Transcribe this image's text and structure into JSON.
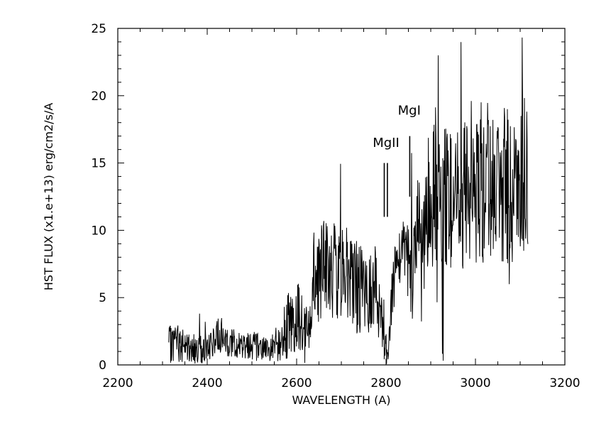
{
  "chart_data": {
    "type": "line",
    "title": "",
    "xlabel": "WAVELENGTH (A)",
    "ylabel": "HST FLUX (x1.e+13) erg/cm2/s/A",
    "xlim": [
      2200,
      3200
    ],
    "ylim": [
      0,
      25
    ],
    "xticks": [
      2200,
      2400,
      2600,
      2800,
      3000,
      3200
    ],
    "yticks": [
      0,
      5,
      10,
      15,
      20,
      25
    ],
    "grid": false,
    "legend": "none",
    "series": [
      {
        "x": [
          2314,
          2330,
          2350,
          2370,
          2390,
          2410,
          2425,
          2440,
          2460,
          2480,
          2500,
          2520,
          2540,
          2560,
          2575,
          2590,
          2600,
          2615,
          2630,
          2635,
          2640,
          2660,
          2680,
          2700,
          2720,
          2740,
          2760,
          2775,
          2785,
          2795,
          2805,
          2815,
          2830,
          2845,
          2856,
          2865,
          2880,
          2895,
          2910,
          2930,
          2950,
          2970,
          2990,
          3010,
          3030,
          3050,
          3070,
          3090,
          3105,
          3118
        ],
        "y": [
          1.4,
          1.8,
          1.3,
          1.2,
          1.2,
          1.3,
          2.3,
          1.8,
          1.6,
          1.5,
          1.6,
          1.2,
          1.3,
          1.6,
          2.6,
          3.3,
          3.8,
          3.0,
          3.0,
          4.5,
          7.0,
          7.2,
          6.8,
          7.2,
          6.3,
          5.6,
          4.8,
          6.5,
          4.3,
          2.0,
          1.0,
          5.8,
          8.0,
          8.5,
          6.0,
          9.0,
          11.0,
          12.0,
          13.0,
          12.0,
          12.8,
          12.5,
          13.0,
          13.2,
          13.8,
          13.5,
          13.0,
          14.0,
          14.5,
          13.5
        ],
        "noise": [
          1.4,
          1.5,
          1.2,
          1.1,
          1.1,
          1.1,
          1.3,
          1.1,
          1.1,
          1.1,
          1.2,
          1.0,
          1.0,
          1.4,
          2.2,
          2.8,
          2.8,
          2.2,
          2.2,
          3.0,
          3.5,
          3.8,
          3.8,
          3.8,
          3.6,
          3.4,
          3.2,
          3.4,
          3.0,
          1.6,
          0.6,
          2.5,
          2.8,
          3.0,
          3.5,
          3.8,
          4.5,
          5.0,
          5.5,
          5.5,
          5.5,
          5.5,
          5.5,
          5.8,
          6.0,
          6.0,
          6.0,
          6.0,
          6.2,
          6.0
        ]
      }
    ],
    "annotations": [
      {
        "text": "MgII",
        "x": 2800,
        "y": 16.2,
        "lines": [
          {
            "x": 2796,
            "y0": 11.0,
            "y1": 15.0
          },
          {
            "x": 2803,
            "y0": 11.0,
            "y1": 15.0
          }
        ]
      },
      {
        "text": "MgI",
        "x": 2852,
        "y": 18.6,
        "lines": [
          {
            "x": 2853,
            "y0": 12.5,
            "y1": 17.0
          }
        ]
      }
    ]
  }
}
